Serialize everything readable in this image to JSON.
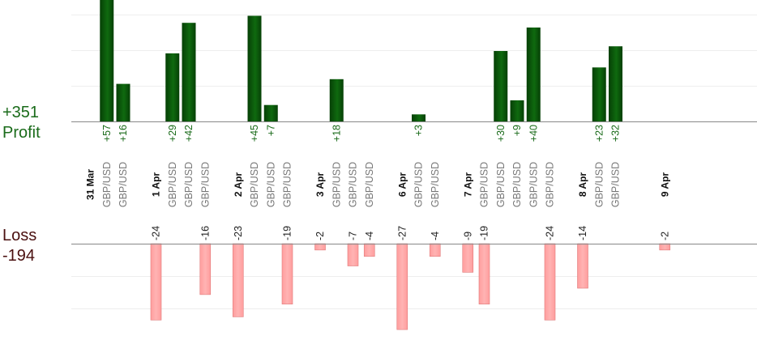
{
  "summary": {
    "profit_total": "+351",
    "profit_label": "Profit",
    "loss_label": "Loss",
    "loss_total": "-194"
  },
  "colors": {
    "profit_bar": "#0f6a0f",
    "profit_bar_dark": "#064006",
    "profit_text": "#1a6b1a",
    "loss_bar": "#ffb3b3",
    "loss_stroke": "#e07a7a",
    "loss_text": "#222222",
    "date_text": "#111111",
    "pair_text": "#777777",
    "axis": "#888888",
    "grid": "#eeeeee"
  },
  "chart_data": {
    "type": "bar",
    "profit_scale_max": 57,
    "loss_scale_max": 27,
    "slots": [
      {
        "label": "31 Mar",
        "kind": "date"
      },
      {
        "label": "GBP/USD",
        "kind": "pair",
        "profit": 57,
        "profit_label": "+57"
      },
      {
        "label": "GBP/USD",
        "kind": "pair",
        "profit": 16,
        "profit_label": "+16"
      },
      {
        "label": "",
        "kind": "gap"
      },
      {
        "label": "1 Apr",
        "kind": "date",
        "loss": 24,
        "loss_label": "-24"
      },
      {
        "label": "GBP/USD",
        "kind": "pair",
        "profit": 29,
        "profit_label": "+29"
      },
      {
        "label": "GBP/USD",
        "kind": "pair",
        "profit": 42,
        "profit_label": "+42"
      },
      {
        "label": "GBP/USD",
        "kind": "pair",
        "loss": 16,
        "loss_label": "-16"
      },
      {
        "label": "",
        "kind": "gap"
      },
      {
        "label": "2 Apr",
        "kind": "date",
        "loss": 23,
        "loss_label": "-23"
      },
      {
        "label": "GBP/USD",
        "kind": "pair",
        "profit": 45,
        "profit_label": "+45"
      },
      {
        "label": "GBP/USD",
        "kind": "pair",
        "profit": 7,
        "profit_label": "+7"
      },
      {
        "label": "GBP/USD",
        "kind": "pair",
        "loss": 19,
        "loss_label": "-19"
      },
      {
        "label": "",
        "kind": "gap"
      },
      {
        "label": "3 Apr",
        "kind": "date",
        "loss": 2,
        "loss_label": "-2"
      },
      {
        "label": "GBP/USD",
        "kind": "pair",
        "profit": 18,
        "profit_label": "+18"
      },
      {
        "label": "GBP/USD",
        "kind": "pair",
        "loss": 7,
        "loss_label": "-7"
      },
      {
        "label": "GBP/USD",
        "kind": "pair",
        "loss": 4,
        "loss_label": "-4"
      },
      {
        "label": "",
        "kind": "gap"
      },
      {
        "label": "6 Apr",
        "kind": "date",
        "loss": 27,
        "loss_label": "-27"
      },
      {
        "label": "GBP/USD",
        "kind": "pair",
        "profit": 3,
        "profit_label": "+3"
      },
      {
        "label": "GBP/USD",
        "kind": "pair",
        "loss": 4,
        "loss_label": "-4"
      },
      {
        "label": "",
        "kind": "gap"
      },
      {
        "label": "7 Apr",
        "kind": "date",
        "loss": 9,
        "loss_label": "-9"
      },
      {
        "label": "GBP/USD",
        "kind": "pair",
        "loss": 19,
        "loss_label": "-19"
      },
      {
        "label": "GBP/USD",
        "kind": "pair",
        "profit": 30,
        "profit_label": "+30"
      },
      {
        "label": "GBP/USD",
        "kind": "pair",
        "profit": 9,
        "profit_label": "+9"
      },
      {
        "label": "GBP/USD",
        "kind": "pair",
        "profit": 40,
        "profit_label": "+40"
      },
      {
        "label": "GBP/USD",
        "kind": "pair",
        "loss": 24,
        "loss_label": "-24"
      },
      {
        "label": "",
        "kind": "gap"
      },
      {
        "label": "8 Apr",
        "kind": "date",
        "loss": 14,
        "loss_label": "-14"
      },
      {
        "label": "GBP/USD",
        "kind": "pair",
        "profit": 23,
        "profit_label": "+23"
      },
      {
        "label": "GBP/USD",
        "kind": "pair",
        "profit": 32,
        "profit_label": "+32"
      },
      {
        "label": "",
        "kind": "gap"
      },
      {
        "label": "",
        "kind": "gap"
      },
      {
        "label": "9 Apr",
        "kind": "date",
        "loss": 2,
        "loss_label": "-2"
      }
    ]
  }
}
